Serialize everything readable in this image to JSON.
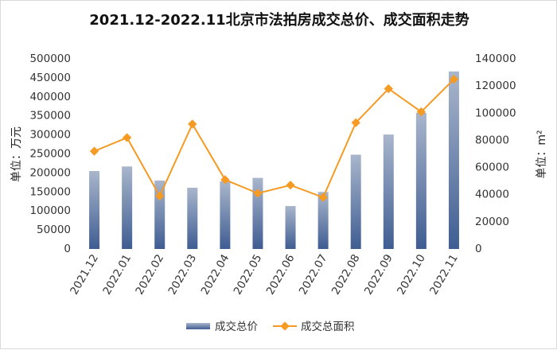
{
  "title": "2021.12-2022.11北京市法拍房成交总价、成交面积走势",
  "colors": {
    "bar_top": "#a9b6cc",
    "bar_bottom": "#3f5d92",
    "line": "#f59a23"
  },
  "chart_data": {
    "type": "bar",
    "categories": [
      "2021.12",
      "2022.01",
      "2022.02",
      "2022.03",
      "2022.04",
      "2022.05",
      "2022.06",
      "2022.07",
      "2022.08",
      "2022.09",
      "2022.10",
      "2022.11"
    ],
    "series": [
      {
        "name": "成交总价",
        "type": "bar",
        "axis": "left",
        "values": [
          205000,
          217000,
          180000,
          161000,
          178000,
          187000,
          113000,
          150000,
          248000,
          301000,
          358000,
          467000
        ]
      },
      {
        "name": "成交总面积",
        "type": "line",
        "axis": "right",
        "values": [
          72000,
          82000,
          39000,
          92000,
          51000,
          41000,
          47000,
          38000,
          93000,
          118000,
          101000,
          125000
        ]
      }
    ],
    "ylabel": "单位：万元",
    "ylabel_right": "单位：m²",
    "ylim": [
      0,
      500000
    ],
    "ylim_right": [
      0,
      140000
    ],
    "yticks": [
      "500000",
      "450000",
      "400000",
      "350000",
      "300000",
      "250000",
      "200000",
      "150000",
      "100000",
      "50000",
      "0"
    ],
    "yticks_right": [
      "140000",
      "120000",
      "100000",
      "80000",
      "60000",
      "40000",
      "20000",
      "0"
    ],
    "grid": false,
    "legend_position": "bottom"
  }
}
